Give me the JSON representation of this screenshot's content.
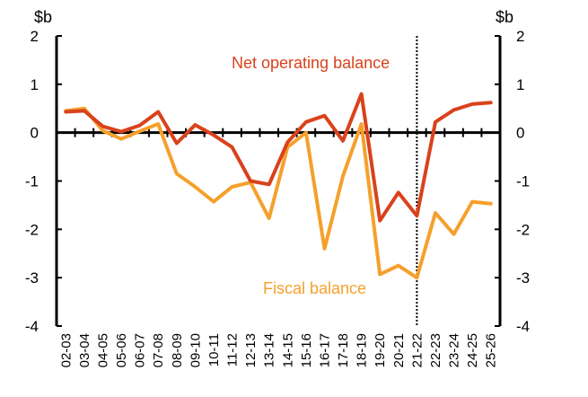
{
  "chart_data": {
    "type": "line",
    "unit_left": "$b",
    "unit_right": "$b",
    "ylim": [
      -4,
      2
    ],
    "yticks": [
      2,
      1,
      0,
      -1,
      -2,
      -3,
      -4
    ],
    "grid": false,
    "forecast_divider_after": "21-22",
    "categories": [
      "02-03",
      "03-04",
      "04-05",
      "05-06",
      "06-07",
      "07-08",
      "08-09",
      "09-10",
      "10-11",
      "11-12",
      "12-13",
      "13-14",
      "14-15",
      "15-16",
      "16-17",
      "17-18",
      "18-19",
      "19-20",
      "20-21",
      "21-22",
      "22-23",
      "23-24",
      "24-25",
      "25-26"
    ],
    "series": [
      {
        "name": "Net operating balance",
        "color": "#d9421c",
        "values": [
          0.43,
          0.45,
          0.13,
          0.02,
          0.15,
          0.43,
          -0.22,
          0.16,
          -0.05,
          -0.3,
          -1.0,
          -1.07,
          -0.2,
          0.22,
          0.35,
          -0.17,
          0.8,
          -1.82,
          -1.24,
          -1.72,
          0.22,
          0.47,
          0.59,
          0.62
        ]
      },
      {
        "name": "Fiscal balance",
        "color": "#f5a02c",
        "values": [
          0.45,
          0.5,
          0.04,
          -0.13,
          0.03,
          0.18,
          -0.85,
          -1.12,
          -1.43,
          -1.12,
          -1.03,
          -1.77,
          -0.3,
          0.0,
          -2.4,
          -0.9,
          0.18,
          -2.93,
          -2.75,
          -3.0,
          -1.66,
          -2.1,
          -1.43,
          -1.47
        ]
      }
    ]
  }
}
